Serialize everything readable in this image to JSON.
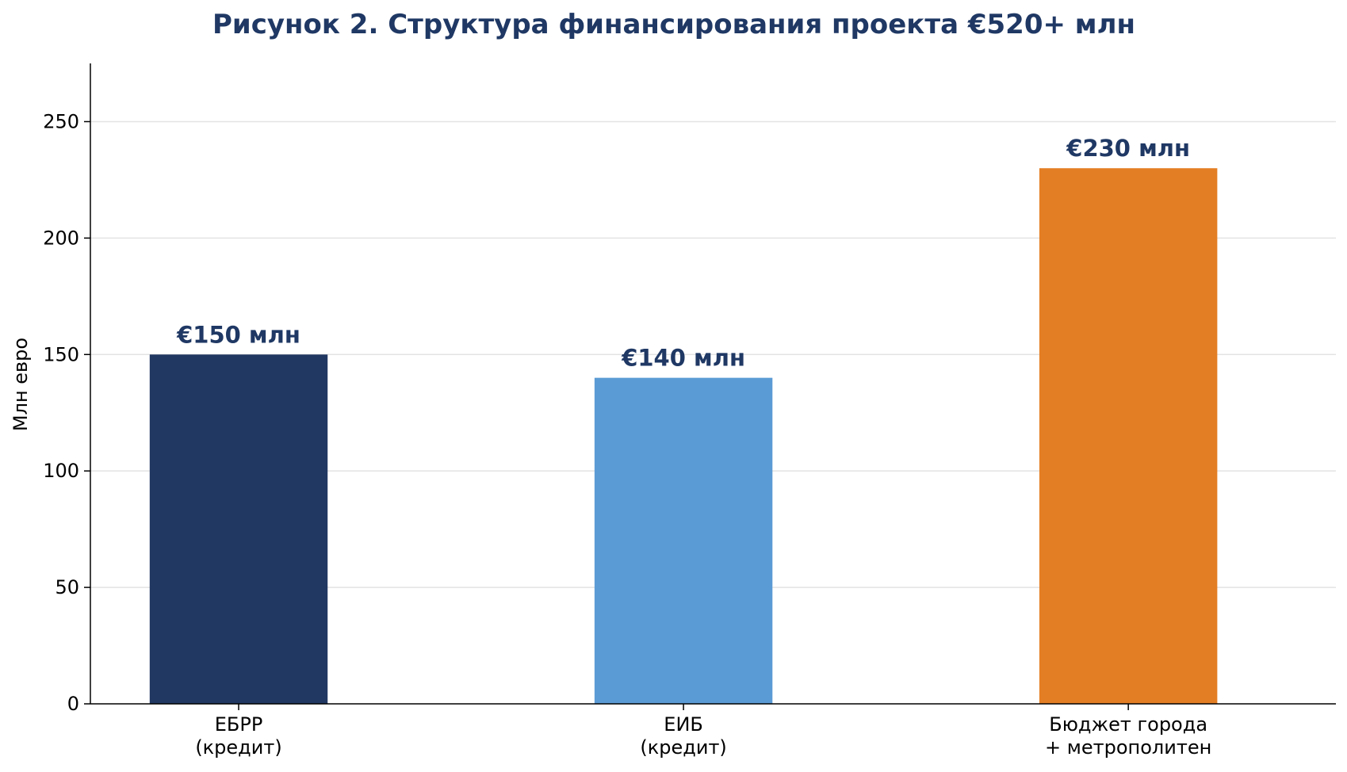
{
  "chart_data": {
    "type": "bar",
    "title": "Рисунок 2. Структура финансирования проекта €520+ млн",
    "ylabel": "Млн евро",
    "xlabel": "",
    "ylim": [
      0,
      275
    ],
    "yticks": [
      "0",
      "50",
      "100",
      "150",
      "200",
      "250"
    ],
    "ytick_values": [
      0,
      50,
      100,
      150,
      200,
      250
    ],
    "grid": "horizontal",
    "categories": [
      [
        "ЕБРР",
        "(кредит)"
      ],
      [
        "ЕИБ",
        "(кредит)"
      ],
      [
        "Бюджет города",
        "+ метрополитен"
      ]
    ],
    "values": [
      150,
      140,
      230
    ],
    "data_labels": [
      "€150 млн",
      "€140 млн",
      "€230 млн"
    ],
    "colors": [
      "#213862",
      "#5b9bd5",
      "#e47e24"
    ],
    "title_color": "#1f3864",
    "label_color": "#1f3864"
  }
}
